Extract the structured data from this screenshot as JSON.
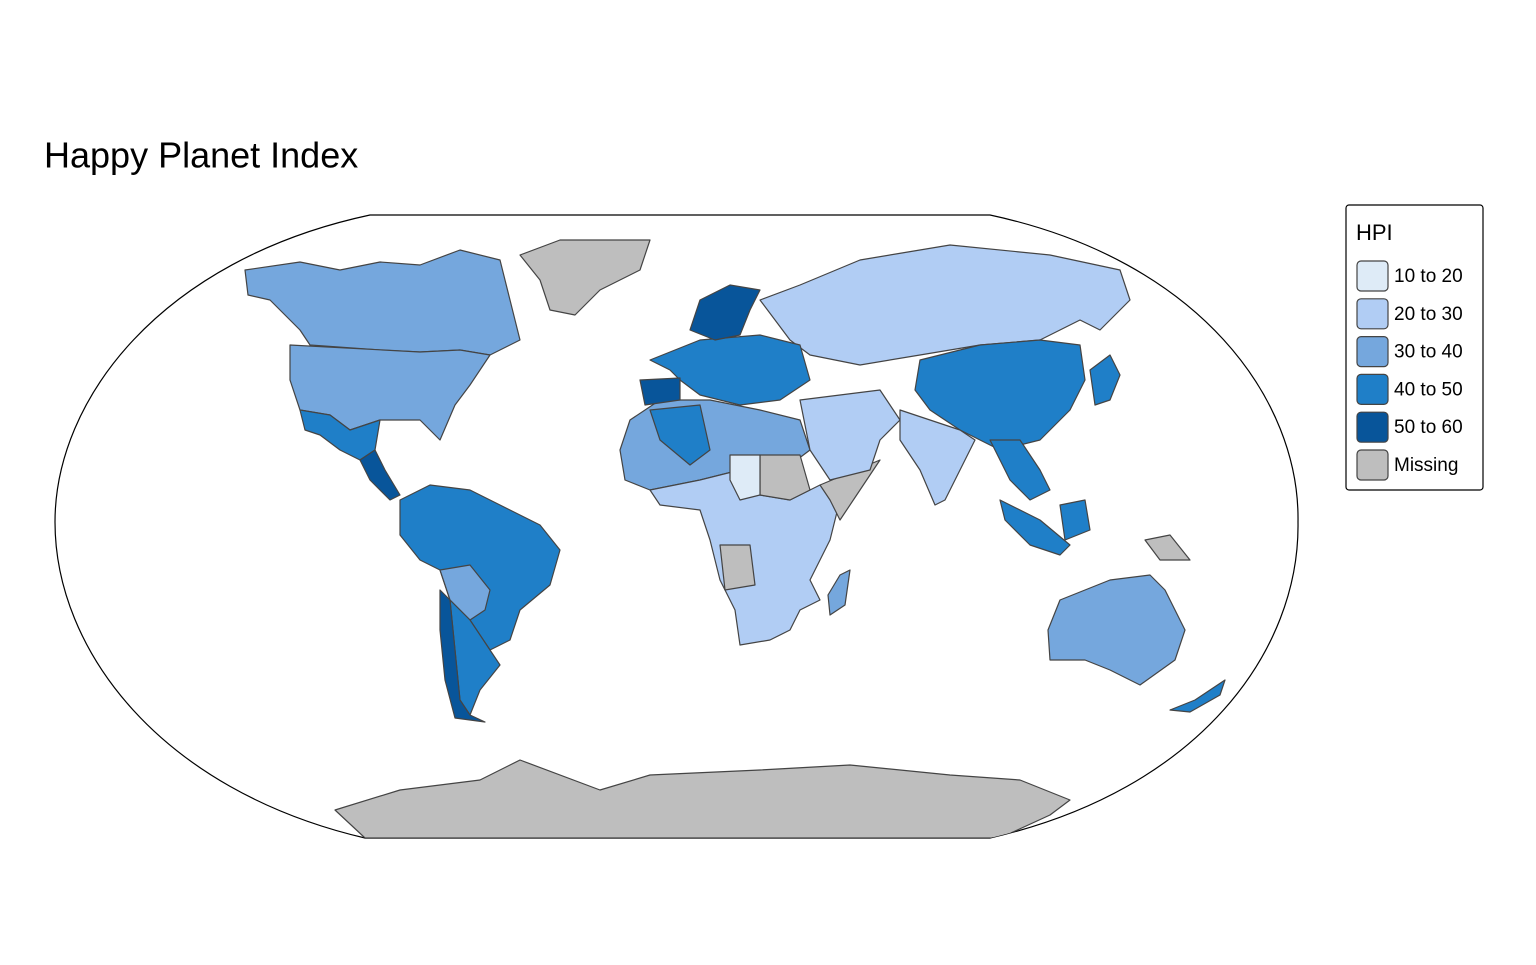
{
  "title": "Happy Planet Index",
  "legend": {
    "title": "HPI",
    "items": [
      {
        "label": "10 to 20",
        "color": "#deebf7"
      },
      {
        "label": "20 to 30",
        "color": "#b1cdf4"
      },
      {
        "label": "30 to 40",
        "color": "#75a7dd"
      },
      {
        "label": "40 to 50",
        "color": "#1f7fc8"
      },
      {
        "label": "50 to 60",
        "color": "#08559a"
      },
      {
        "label": "Missing",
        "color": "#bebebe"
      }
    ]
  }
}
